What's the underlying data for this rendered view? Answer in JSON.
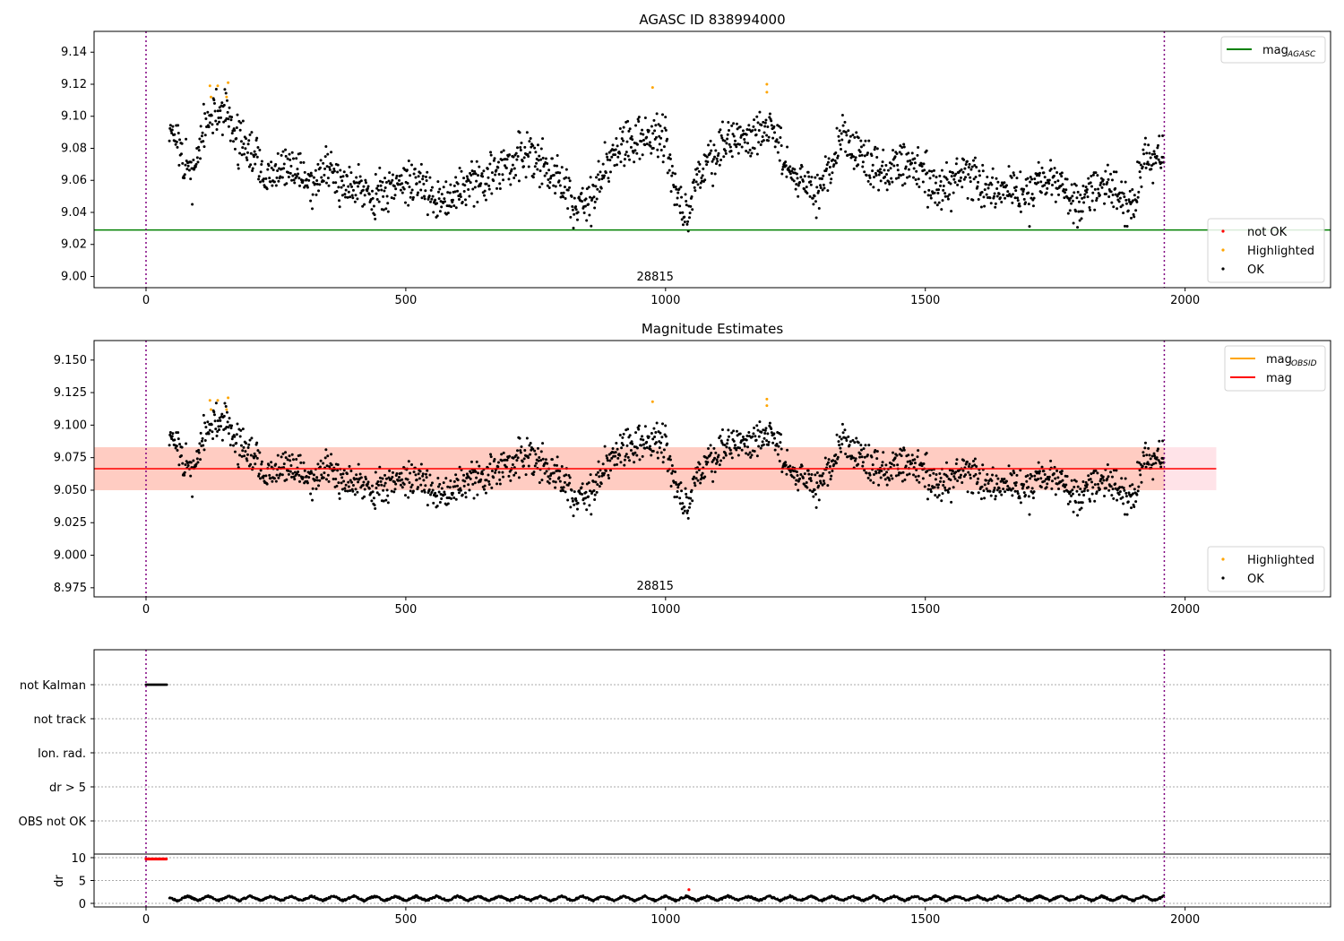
{
  "chart_data": [
    {
      "type": "scatter",
      "title": "AGASC ID 838994000",
      "xlim": [
        -100,
        2280
      ],
      "ylim": [
        8.993,
        9.153
      ],
      "xticks": [
        0,
        500,
        1000,
        1500,
        2000
      ],
      "yticks": [
        "9.00",
        "9.02",
        "9.04",
        "9.06",
        "9.08",
        "9.10",
        "9.12",
        "9.14"
      ],
      "annotation": "28815",
      "vlines": [
        0,
        1960
      ],
      "hline": {
        "label": "mag_AGASC",
        "value": 9.029,
        "color": "#008000"
      },
      "legend_top": [
        {
          "label": "mag",
          "sub": "AGASC",
          "color": "#008000"
        }
      ],
      "legend_bottom": [
        {
          "label": "not OK",
          "color": "#ff0000"
        },
        {
          "label": "Highlighted",
          "color": "#ffa500"
        },
        {
          "label": "OK",
          "color": "#000000"
        }
      ]
    },
    {
      "type": "scatter",
      "title": "Magnitude Estimates",
      "xlim": [
        -100,
        2280
      ],
      "ylim": [
        8.968,
        9.165
      ],
      "xticks": [
        0,
        500,
        1000,
        1500,
        2000
      ],
      "yticks": [
        "8.975",
        "9.000",
        "9.025",
        "9.050",
        "9.075",
        "9.100",
        "9.125",
        "9.150"
      ],
      "annotation": "28815",
      "mag": 9.0665,
      "band": [
        9.05,
        9.083
      ],
      "band_x": [
        -100,
        2060
      ],
      "legend_top": [
        {
          "label": "mag",
          "sub": "OBSID",
          "color": "#ffa500"
        },
        {
          "label": "mag",
          "sub": "",
          "color": "#ff0000"
        }
      ],
      "legend_bottom": [
        {
          "label": "Highlighted",
          "color": "#ffa500"
        },
        {
          "label": "OK",
          "color": "#000000"
        }
      ]
    },
    {
      "type": "scatter",
      "flags": [
        "not Kalman",
        "not track",
        "Ion. rad.",
        "dr > 5",
        "OBS not OK"
      ],
      "flag_points": {
        "not Kalman": [
          0,
          40
        ]
      },
      "dr_label": "dr",
      "dr_yticks": [
        "0",
        "5",
        "10"
      ],
      "dr_red": [
        [
          0,
          9.7
        ],
        [
          40,
          9.7
        ],
        [
          1045,
          3.0
        ]
      ],
      "xticks": [
        0,
        500,
        1000,
        1500,
        2000
      ]
    }
  ],
  "series": {
    "trend_x": [
      50,
      70,
      90,
      110,
      130,
      150,
      170,
      190,
      210,
      230,
      260,
      290,
      320,
      350,
      380,
      410,
      440,
      470,
      500,
      530,
      560,
      590,
      620,
      650,
      680,
      710,
      740,
      770,
      800,
      830,
      860,
      890,
      920,
      950,
      980,
      1000,
      1020,
      1040,
      1060,
      1080,
      1100,
      1130,
      1160,
      1190,
      1210,
      1230,
      1260,
      1290,
      1320,
      1340,
      1370,
      1400,
      1430,
      1460,
      1490,
      1520,
      1550,
      1580,
      1610,
      1640,
      1670,
      1700,
      1730,
      1760,
      1790,
      1820,
      1850,
      1880,
      1900,
      1920,
      1950
    ],
    "trend_mag": [
      9.095,
      9.07,
      9.065,
      9.09,
      9.1,
      9.105,
      9.09,
      9.08,
      9.075,
      9.06,
      9.065,
      9.068,
      9.058,
      9.065,
      9.06,
      9.058,
      9.05,
      9.055,
      9.06,
      9.058,
      9.048,
      9.05,
      9.058,
      9.06,
      9.065,
      9.075,
      9.075,
      9.068,
      9.058,
      9.045,
      9.05,
      9.07,
      9.085,
      9.085,
      9.088,
      9.085,
      9.05,
      9.04,
      9.06,
      9.07,
      9.08,
      9.085,
      9.088,
      9.095,
      9.09,
      9.07,
      9.058,
      9.055,
      9.065,
      9.09,
      9.075,
      9.065,
      9.065,
      9.07,
      9.065,
      9.058,
      9.058,
      9.065,
      9.055,
      9.052,
      9.055,
      9.05,
      9.065,
      9.055,
      9.045,
      9.055,
      9.055,
      9.05,
      9.045,
      9.075,
      9.075
    ],
    "highlighted": [
      [
        123,
        9.119
      ],
      [
        138,
        9.119
      ],
      [
        158,
        9.121
      ],
      [
        155,
        9.112
      ],
      [
        125,
        9.112
      ],
      [
        975,
        9.118
      ],
      [
        1195,
        9.12
      ],
      [
        1195,
        9.115
      ]
    ]
  }
}
